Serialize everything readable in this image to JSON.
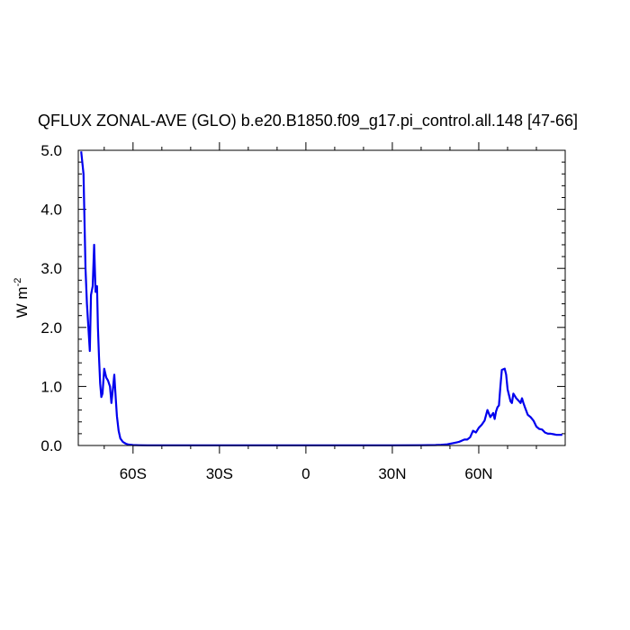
{
  "chart_data": {
    "type": "line",
    "title": "QFLUX ZONAL-AVE (GLO) b.e20.B1850.f09_g17.pi_control.all.148 [47-66]",
    "ylabel": "W m",
    "ylabel_superscript": "-2",
    "xlim": [
      -79,
      90
    ],
    "ylim": [
      0,
      5
    ],
    "grid": false,
    "line_color": "#0000ee",
    "x_ticks": [
      {
        "value": -60,
        "label": "60S"
      },
      {
        "value": -30,
        "label": "30S"
      },
      {
        "value": 0,
        "label": "0"
      },
      {
        "value": 30,
        "label": "30N"
      },
      {
        "value": 60,
        "label": "60N"
      }
    ],
    "y_ticks": [
      {
        "value": 0,
        "label": "0.0"
      },
      {
        "value": 1,
        "label": "1.0"
      },
      {
        "value": 2,
        "label": "2.0"
      },
      {
        "value": 3,
        "label": "3.0"
      },
      {
        "value": 4,
        "label": "4.0"
      },
      {
        "value": 5,
        "label": "5.0"
      }
    ],
    "series": [
      {
        "x": [
          -78,
          -77.2,
          -76.5,
          -76,
          -75.5,
          -75,
          -74.6,
          -74,
          -73.5,
          -73,
          -72.5,
          -72.2,
          -71.8,
          -71.4,
          -71,
          -70.6,
          -70,
          -69.3,
          -68.7,
          -68,
          -67.5,
          -67,
          -66.5,
          -66,
          -65.6,
          -65,
          -64.4,
          -63.5,
          -62.5,
          -61.5,
          -60,
          -58,
          -55,
          -50,
          -40,
          -30,
          -20,
          -10,
          0,
          10,
          20,
          30,
          40,
          45,
          47,
          49,
          51,
          53,
          54,
          55,
          56,
          57,
          58,
          59,
          60,
          61,
          62,
          63,
          64,
          65,
          65.5,
          66,
          66.5,
          67,
          67.5,
          68,
          69,
          69.5,
          70,
          70.5,
          71,
          71.5,
          72,
          73,
          74,
          74.5,
          75,
          75.5,
          76,
          77,
          78,
          79,
          80,
          81,
          82,
          83,
          84,
          85,
          86,
          87,
          88,
          89
        ],
        "y": [
          4.98,
          4.6,
          3.0,
          2.4,
          2.0,
          1.6,
          2.55,
          2.7,
          3.4,
          2.6,
          2.7,
          2.0,
          1.5,
          1.05,
          0.82,
          0.88,
          1.3,
          1.15,
          1.1,
          1.0,
          0.72,
          0.95,
          1.2,
          0.8,
          0.5,
          0.25,
          0.12,
          0.06,
          0.03,
          0.015,
          0.008,
          0.005,
          0.003,
          0.003,
          0.003,
          0.003,
          0.003,
          0.003,
          0.003,
          0.003,
          0.003,
          0.003,
          0.004,
          0.008,
          0.012,
          0.02,
          0.04,
          0.06,
          0.08,
          0.1,
          0.1,
          0.14,
          0.25,
          0.22,
          0.3,
          0.35,
          0.42,
          0.6,
          0.48,
          0.55,
          0.45,
          0.58,
          0.65,
          0.68,
          1.0,
          1.28,
          1.3,
          1.2,
          0.95,
          0.85,
          0.75,
          0.72,
          0.88,
          0.8,
          0.75,
          0.72,
          0.8,
          0.72,
          0.65,
          0.52,
          0.48,
          0.42,
          0.32,
          0.28,
          0.27,
          0.22,
          0.2,
          0.2,
          0.19,
          0.18,
          0.18,
          0.18
        ]
      }
    ]
  }
}
